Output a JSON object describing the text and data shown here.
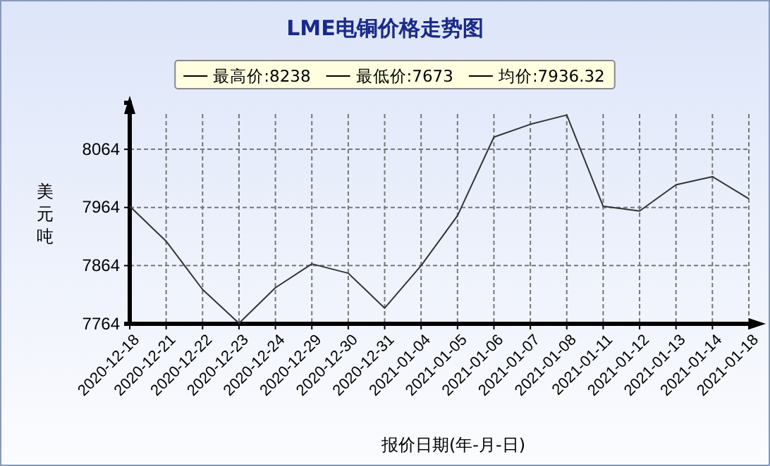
{
  "chart_data": {
    "type": "line",
    "title": "LME电铜价格走势图",
    "xlabel": "报价日期(年-月-日)",
    "ylabel": "美元吨",
    "annotations": [
      "最高价:8238",
      "最低价:7673",
      "均价:7936.32"
    ],
    "categories": [
      "2020-12-18",
      "2020-12-21",
      "2020-12-22",
      "2020-12-23",
      "2020-12-24",
      "2020-12-29",
      "2020-12-30",
      "2020-12-31",
      "2021-01-04",
      "2021-01-05",
      "2021-01-06",
      "2021-01-07",
      "2021-01-08",
      "2021-01-11",
      "2021-01-12",
      "2021-01-13",
      "2021-01-14",
      "2021-01-18"
    ],
    "series": [
      {
        "color": "#333333",
        "values": [
          7966,
          7906,
          7823,
          7765,
          7826,
          7867,
          7851,
          7791,
          7864,
          7950,
          8085,
          8107,
          8123,
          7966,
          7958,
          8003,
          8017,
          7979
        ]
      }
    ],
    "ylim": [
      7764,
      8144
    ],
    "yticks": [
      7764,
      7864,
      7964,
      8064
    ],
    "grid": true,
    "line_style": "solid",
    "marker": "none"
  }
}
